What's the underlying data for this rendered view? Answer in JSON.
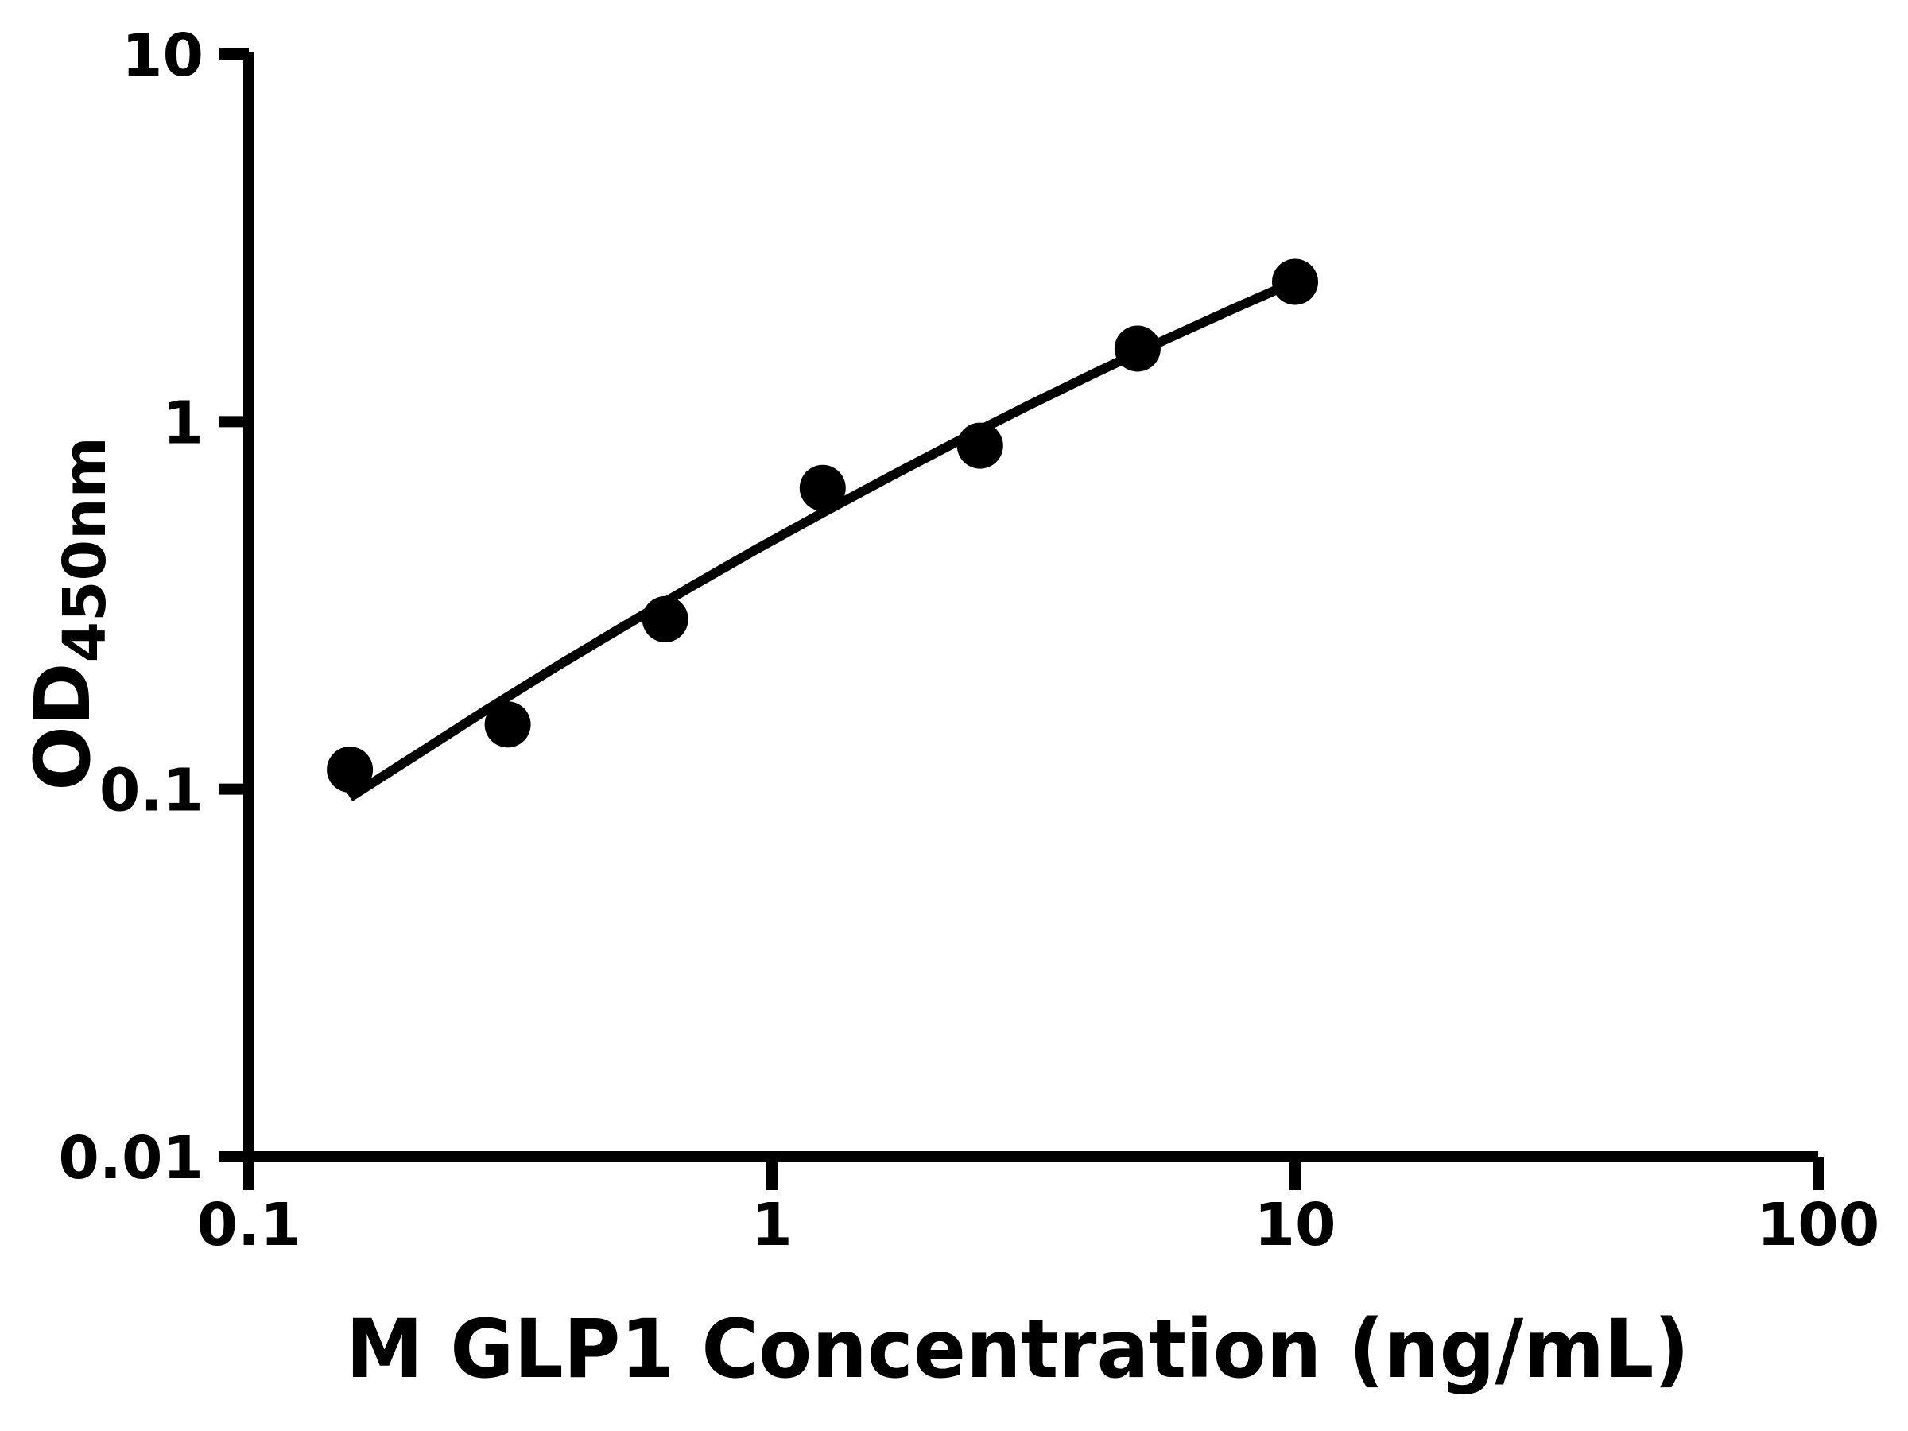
{
  "figure": {
    "background_color": "#ffffff",
    "ink_color": "#000000"
  },
  "chart_data": {
    "type": "scatter",
    "title": "",
    "xlabel": "M GLP1 Concentration (ng/mL)",
    "ylabel_main": "OD",
    "ylabel_subscript": "450nm",
    "x_scale": "log",
    "y_scale": "log",
    "xlim": [
      0.1,
      100
    ],
    "ylim": [
      0.01,
      10
    ],
    "grid": "off",
    "legend": "none",
    "x_ticks": [
      {
        "value": 0.1,
        "label": "0.1"
      },
      {
        "value": 1,
        "label": "1"
      },
      {
        "value": 10,
        "label": "10"
      },
      {
        "value": 100,
        "label": "100"
      }
    ],
    "y_ticks": [
      {
        "value": 0.01,
        "label": "0.01"
      },
      {
        "value": 0.1,
        "label": "0.1"
      },
      {
        "value": 1,
        "label": "1"
      },
      {
        "value": 10,
        "label": "10"
      }
    ],
    "series": [
      {
        "name": "standard-curve-points",
        "marker": "filled-circle",
        "points": [
          {
            "x": 0.156,
            "y": 0.113
          },
          {
            "x": 0.3125,
            "y": 0.15
          },
          {
            "x": 0.625,
            "y": 0.29
          },
          {
            "x": 1.25,
            "y": 0.66
          },
          {
            "x": 2.5,
            "y": 0.86
          },
          {
            "x": 5,
            "y": 1.58
          },
          {
            "x": 10,
            "y": 2.4
          }
        ]
      }
    ],
    "fit_curve": [
      {
        "x": 0.156,
        "y": 0.095
      },
      {
        "x": 0.209,
        "y": 0.124
      },
      {
        "x": 0.282,
        "y": 0.163
      },
      {
        "x": 0.38,
        "y": 0.212
      },
      {
        "x": 0.513,
        "y": 0.274
      },
      {
        "x": 0.692,
        "y": 0.352
      },
      {
        "x": 0.933,
        "y": 0.449
      },
      {
        "x": 1.259,
        "y": 0.568
      },
      {
        "x": 1.698,
        "y": 0.714
      },
      {
        "x": 2.291,
        "y": 0.892
      },
      {
        "x": 3.09,
        "y": 1.106
      },
      {
        "x": 4.17,
        "y": 1.361
      },
      {
        "x": 5.62,
        "y": 1.665
      },
      {
        "x": 7.5,
        "y": 2.008
      },
      {
        "x": 10,
        "y": 2.404
      }
    ],
    "marker_color": "#000000",
    "line_color": "#000000"
  }
}
